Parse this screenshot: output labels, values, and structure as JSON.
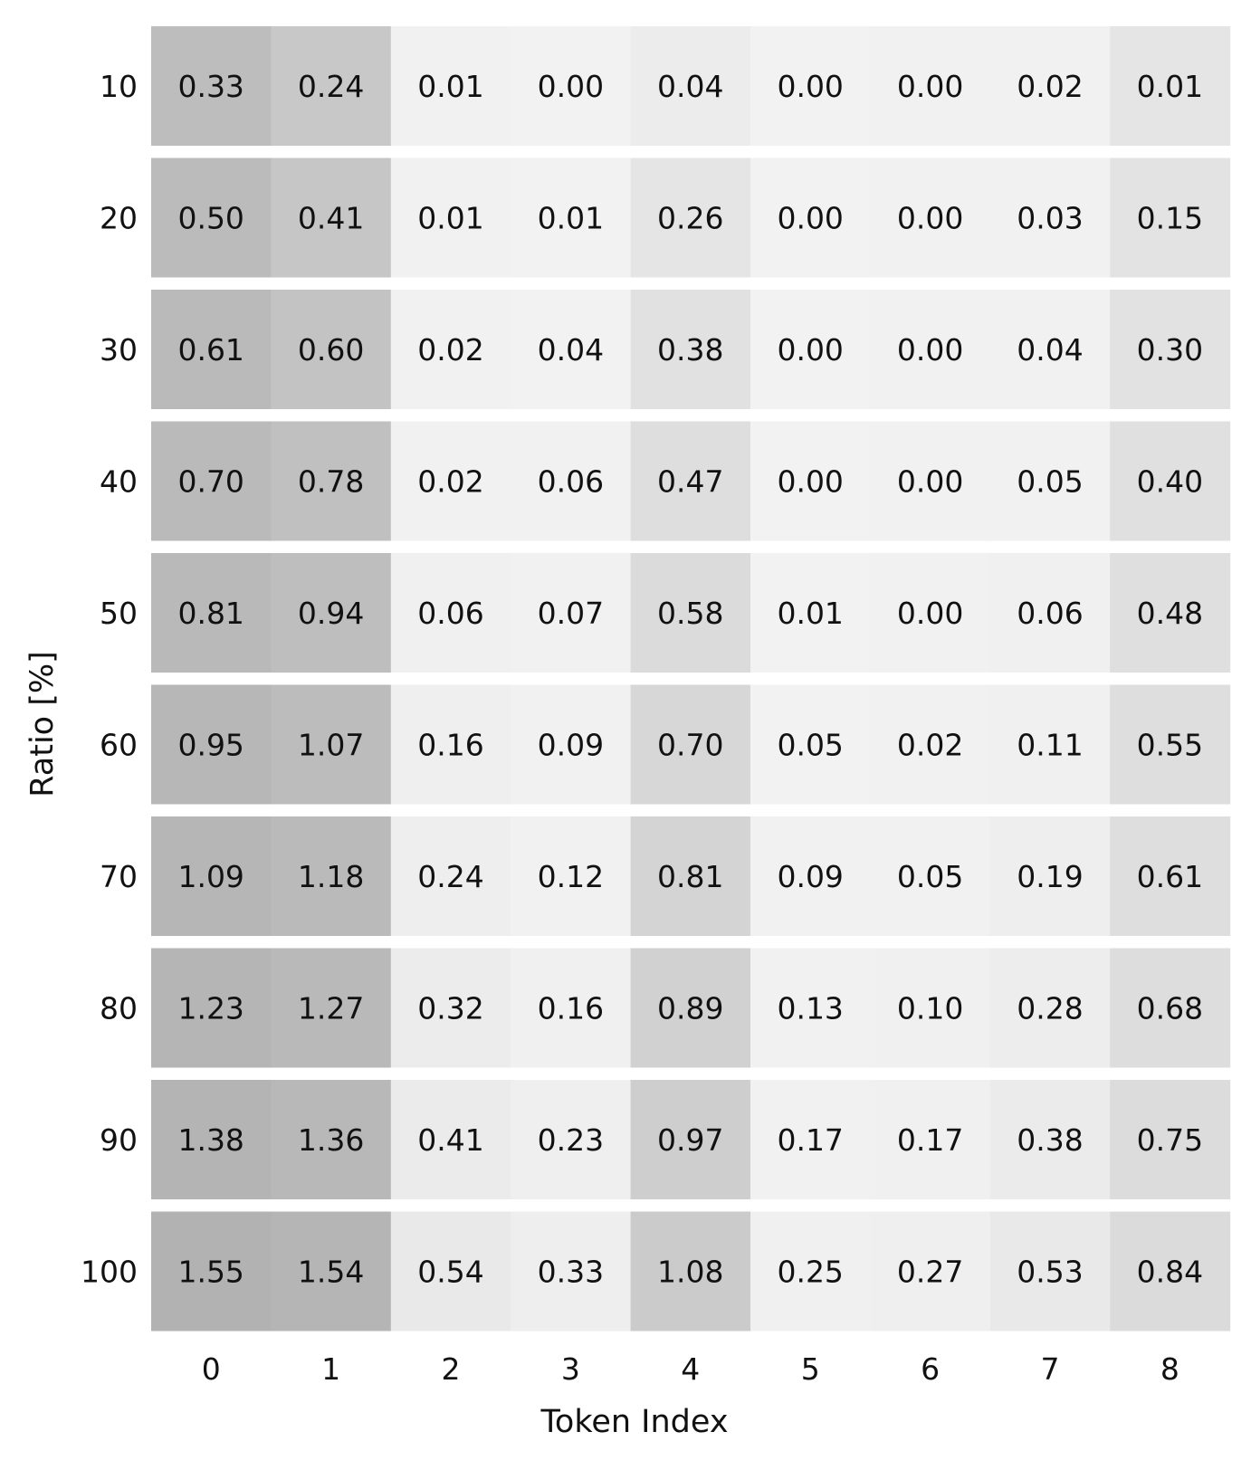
{
  "chart_data": {
    "type": "heatmap",
    "title": "",
    "xlabel": "Token Index",
    "ylabel": "Ratio [%]",
    "x_categories": [
      "0",
      "1",
      "2",
      "3",
      "4",
      "5",
      "6",
      "7",
      "8"
    ],
    "y_categories": [
      "10",
      "20",
      "30",
      "40",
      "50",
      "60",
      "70",
      "80",
      "90",
      "100"
    ],
    "values": [
      [
        "0.33",
        "0.24",
        "0.01",
        "0.00",
        "0.04",
        "0.00",
        "0.00",
        "0.02",
        "0.01"
      ],
      [
        "0.50",
        "0.41",
        "0.01",
        "0.01",
        "0.26",
        "0.00",
        "0.00",
        "0.03",
        "0.15"
      ],
      [
        "0.61",
        "0.60",
        "0.02",
        "0.04",
        "0.38",
        "0.00",
        "0.00",
        "0.04",
        "0.30"
      ],
      [
        "0.70",
        "0.78",
        "0.02",
        "0.06",
        "0.47",
        "0.00",
        "0.00",
        "0.05",
        "0.40"
      ],
      [
        "0.81",
        "0.94",
        "0.06",
        "0.07",
        "0.58",
        "0.01",
        "0.00",
        "0.06",
        "0.48"
      ],
      [
        "0.95",
        "1.07",
        "0.16",
        "0.09",
        "0.70",
        "0.05",
        "0.02",
        "0.11",
        "0.55"
      ],
      [
        "1.09",
        "1.18",
        "0.24",
        "0.12",
        "0.81",
        "0.09",
        "0.05",
        "0.19",
        "0.61"
      ],
      [
        "1.23",
        "1.27",
        "0.32",
        "0.16",
        "0.89",
        "0.13",
        "0.10",
        "0.28",
        "0.68"
      ],
      [
        "1.38",
        "1.36",
        "0.41",
        "0.23",
        "0.97",
        "0.17",
        "0.17",
        "0.38",
        "0.75"
      ],
      [
        "1.55",
        "1.54",
        "0.54",
        "0.33",
        "1.08",
        "0.25",
        "0.27",
        "0.53",
        "0.84"
      ]
    ],
    "color_scale": "grayscale (higher value = darker)",
    "grid": false,
    "legend": "none",
    "row_gaps": true
  }
}
